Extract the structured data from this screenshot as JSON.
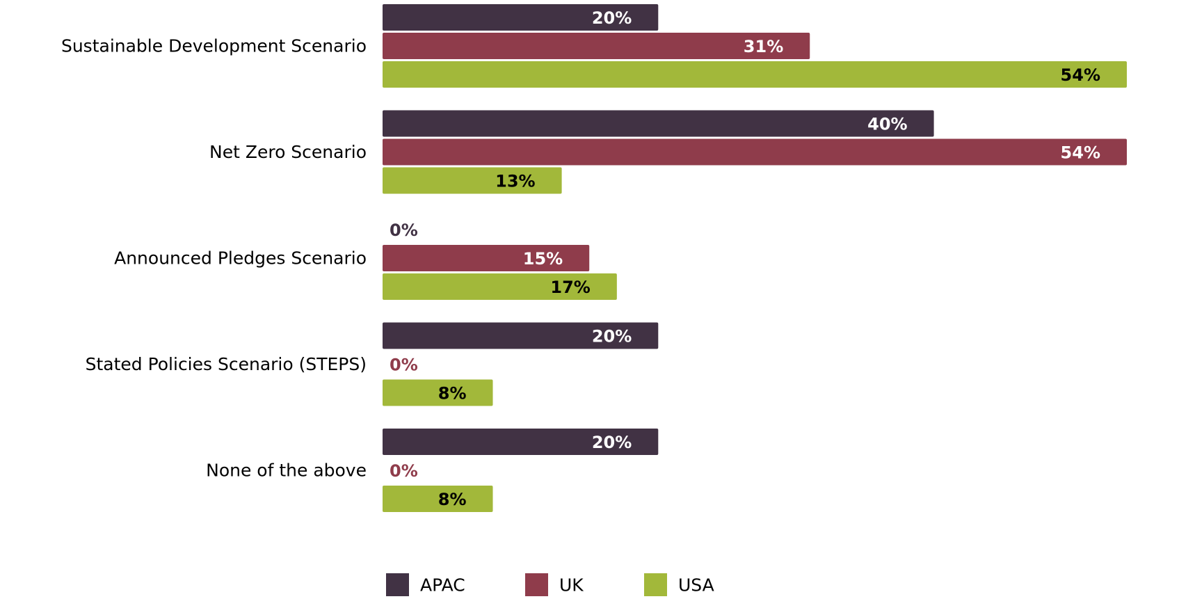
{
  "chart_data": {
    "type": "bar",
    "orientation": "horizontal",
    "categories": [
      "Sustainable Development Scenario",
      "Net Zero Scenario",
      "Announced Pledges Scenario",
      "Stated Policies Scenario (STEPS)",
      "None of the above"
    ],
    "series": [
      {
        "name": "APAC",
        "color": "#413244",
        "values": [
          20,
          40,
          0,
          20,
          20
        ],
        "labels": [
          "20%",
          "40%",
          "0%",
          "20%",
          "20%"
        ]
      },
      {
        "name": "UK",
        "color": "#8f3c4b",
        "values": [
          31,
          54,
          15,
          0,
          0
        ],
        "labels": [
          "31%",
          "54%",
          "15%",
          "0%",
          "0%"
        ]
      },
      {
        "name": "USA",
        "color": "#a2b83a",
        "values": [
          54,
          13,
          17,
          8,
          8
        ],
        "labels": [
          "54%",
          "13%",
          "17%",
          "8%",
          "8%"
        ]
      }
    ],
    "xlim": [
      0,
      54
    ],
    "grid": false,
    "legend_position": "bottom",
    "unit": "%"
  }
}
